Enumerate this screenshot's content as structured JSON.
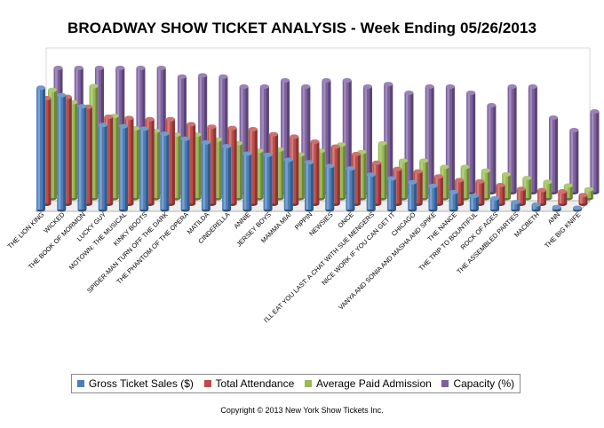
{
  "chart_data": {
    "type": "bar",
    "title": "BROADWAY SHOW TICKET ANALYSIS - Week Ending 05/26/2013",
    "xlabel": "",
    "ylabel": "",
    "ylim": [
      0,
      100
    ],
    "grid": false,
    "legend_position": "bottom",
    "categories": [
      "THE LION KING",
      "WICKED",
      "THE BOOK OF MORMON",
      "LUCKY GUY",
      "MOTOWN: THE MUSICAL",
      "KINKY BOOTS",
      "SPIDER-MAN TURN OFF THE DARK",
      "THE PHANTOM OF THE OPERA",
      "MATILDA",
      "CINDERELLA",
      "ANNIE",
      "JERSEY BOYS",
      "MAMMA MIA!",
      "PIPPIN",
      "NEWSIES",
      "ONCE",
      "I'LL EAT YOU LAST: A CHAT WITH SUE MENGERS",
      "NICE WORK IF YOU CAN GET IT",
      "CHICAGO",
      "VANYA AND SONIA AND MASHA AND SPIKE",
      "THE NANCE",
      "THE TRIP TO BOUNTIFUL",
      "ROCK OF AGES",
      "THE ASSEMBLED PARTIES",
      "MACBETH",
      "ANN",
      "THE BIG KNIFE"
    ],
    "series": [
      {
        "name": "Gross Ticket Sales ($)",
        "color": "#4a7ebb",
        "values": [
          98,
          92,
          83,
          68,
          67,
          65,
          61,
          57,
          54,
          51,
          45,
          44,
          40,
          38,
          35,
          33,
          28,
          25,
          22,
          19,
          14,
          11,
          9,
          6,
          4,
          2,
          1
        ]
      },
      {
        "name": "Total Attendance",
        "color": "#be4b48",
        "values": [
          85,
          86,
          78,
          70,
          69,
          68,
          68,
          64,
          62,
          61,
          60,
          56,
          54,
          50,
          46,
          40,
          33,
          28,
          26,
          22,
          19,
          18,
          15,
          12,
          11,
          10,
          7
        ]
      },
      {
        "name": "Average Paid Admission",
        "color": "#98b954",
        "values": [
          87,
          77,
          90,
          66,
          56,
          54,
          51,
          51,
          47,
          44,
          38,
          39,
          35,
          38,
          43,
          37,
          44,
          30,
          30,
          25,
          25,
          22,
          19,
          16,
          13,
          10,
          7
        ]
      },
      {
        "name": "Capacity (%)",
        "color": "#7d60a0",
        "values": [
          100,
          100,
          100,
          100,
          100,
          100,
          93,
          94,
          93,
          85,
          85,
          90,
          85,
          90,
          90,
          85,
          87,
          80,
          85,
          85,
          80,
          70,
          85,
          85,
          60,
          50,
          65
        ]
      }
    ]
  },
  "copyright": "Copyright © 2013 New York Show Tickets Inc."
}
